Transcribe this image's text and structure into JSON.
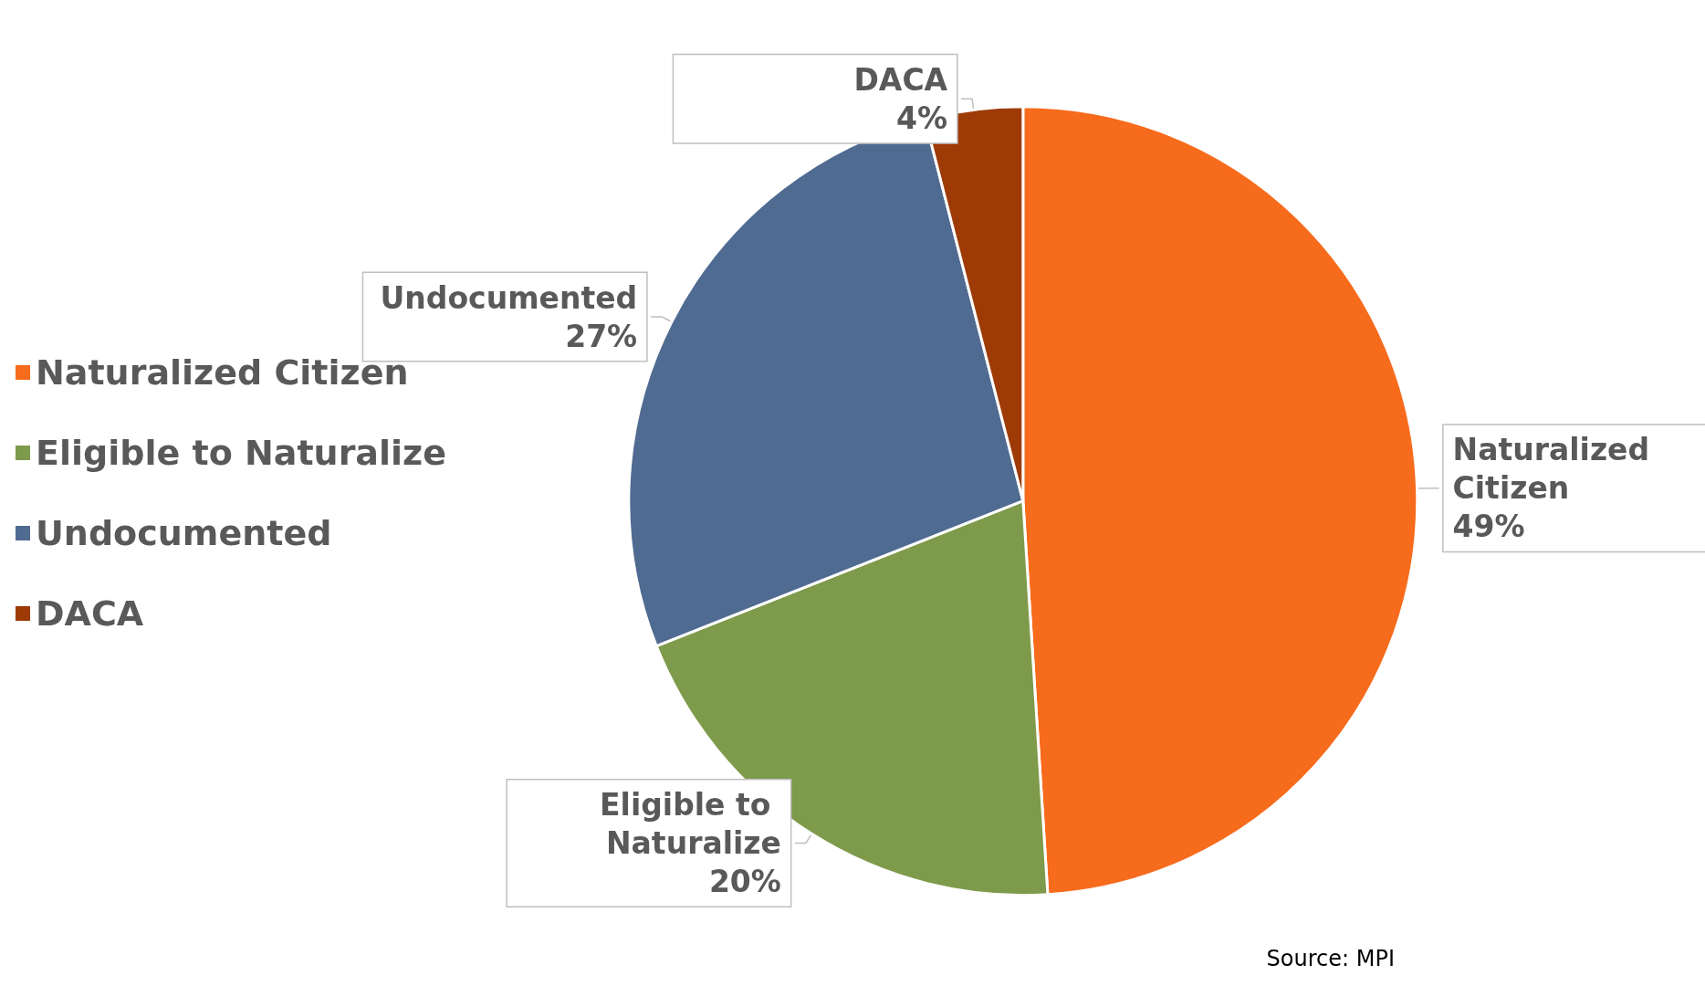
{
  "chart_data": {
    "type": "pie",
    "categories": [
      "Naturalized Citizen",
      "Eligible to Naturalize",
      "Undocumented",
      "DACA"
    ],
    "values": [
      49,
      20,
      27,
      4
    ],
    "value_labels": [
      "49%",
      "20%",
      "27%",
      "4%"
    ],
    "colors": [
      "#f76b1c",
      "#7e9a4b",
      "#506b91",
      "#9e3a06"
    ],
    "legend": "left",
    "annotations": [
      "Source: MPI"
    ]
  }
}
